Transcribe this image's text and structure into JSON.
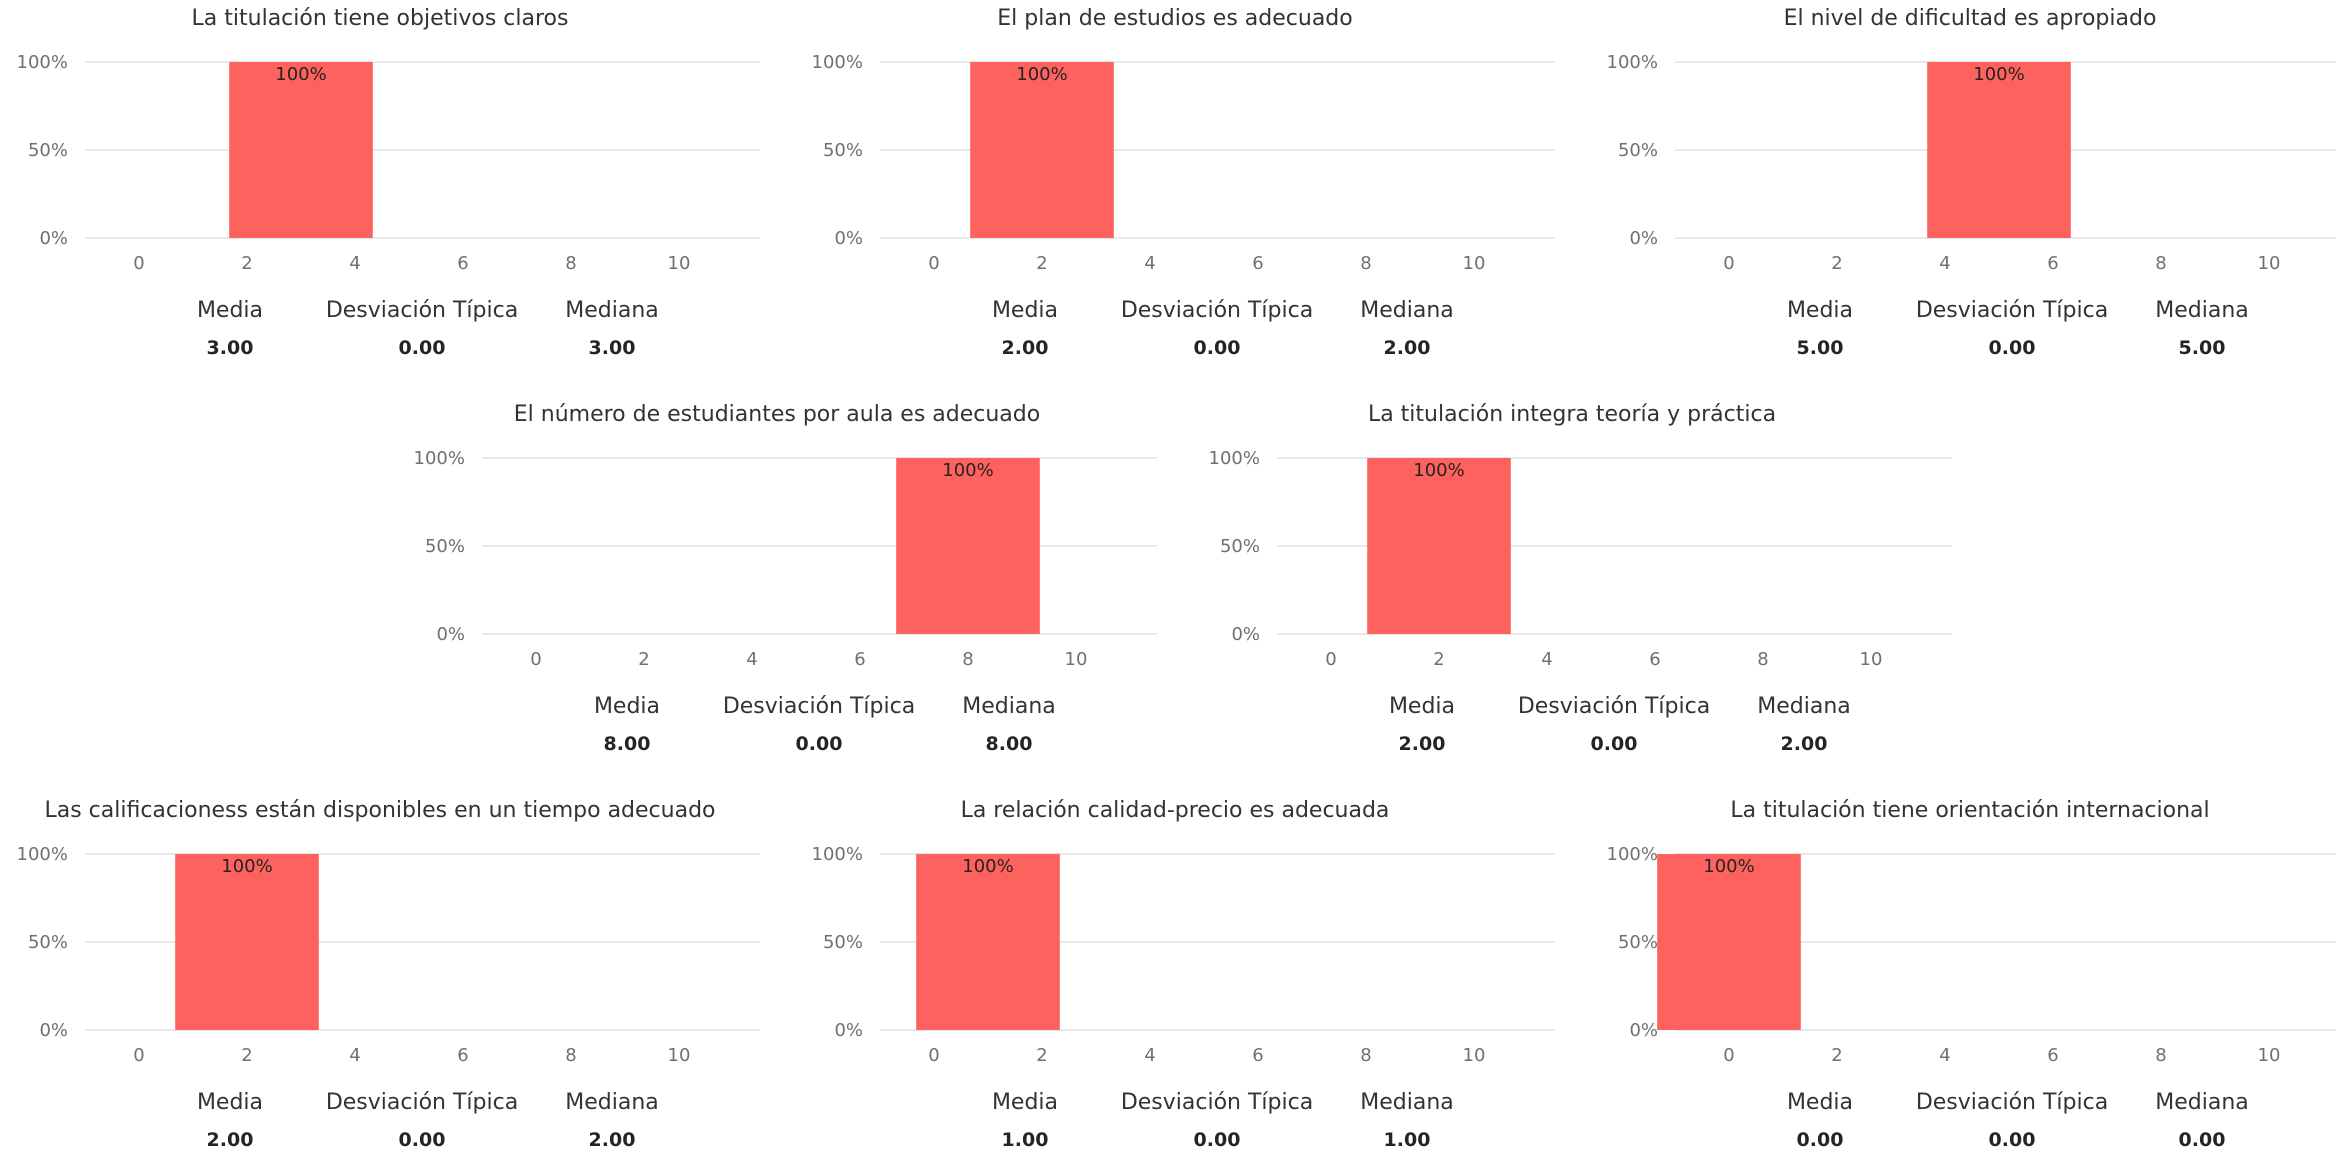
{
  "stat_labels": {
    "mean": "Media",
    "std": "Desviación Típica",
    "median": "Mediana"
  },
  "colors": {
    "bar": "#fd625e",
    "grid": "#e9e9e9"
  },
  "chart_data": [
    {
      "type": "bar",
      "title": "La titulación tiene objetivos claros",
      "x_ticks": [
        "0",
        "2",
        "4",
        "6",
        "8",
        "10"
      ],
      "xlim": [
        -1,
        11.5
      ],
      "y_ticks": [
        "100%",
        "50%",
        "0%"
      ],
      "ylim": [
        0,
        100
      ],
      "bars": [
        {
          "x": 3,
          "value": 100,
          "label": "100%"
        }
      ],
      "stats": {
        "mean": "3.00",
        "std": "0.00",
        "median": "3.00"
      }
    },
    {
      "type": "bar",
      "title": "El plan de estudios es adecuado",
      "x_ticks": [
        "0",
        "2",
        "4",
        "6",
        "8",
        "10"
      ],
      "xlim": [
        -1,
        11.5
      ],
      "y_ticks": [
        "100%",
        "50%",
        "0%"
      ],
      "ylim": [
        0,
        100
      ],
      "bars": [
        {
          "x": 2,
          "value": 100,
          "label": "100%"
        }
      ],
      "stats": {
        "mean": "2.00",
        "std": "0.00",
        "median": "2.00"
      }
    },
    {
      "type": "bar",
      "title": "El nivel de dificultad es apropiado",
      "x_ticks": [
        "0",
        "2",
        "4",
        "6",
        "8",
        "10"
      ],
      "xlim": [
        -1,
        11.5
      ],
      "y_ticks": [
        "100%",
        "50%",
        "0%"
      ],
      "ylim": [
        0,
        100
      ],
      "bars": [
        {
          "x": 5,
          "value": 100,
          "label": "100%"
        }
      ],
      "stats": {
        "mean": "5.00",
        "std": "0.00",
        "median": "5.00"
      }
    },
    {
      "type": "bar",
      "title": "El número de estudiantes por aula es adecuado",
      "x_ticks": [
        "0",
        "2",
        "4",
        "6",
        "8",
        "10"
      ],
      "xlim": [
        -1,
        11.5
      ],
      "y_ticks": [
        "100%",
        "50%",
        "0%"
      ],
      "ylim": [
        0,
        100
      ],
      "bars": [
        {
          "x": 8,
          "value": 100,
          "label": "100%"
        }
      ],
      "stats": {
        "mean": "8.00",
        "std": "0.00",
        "median": "8.00"
      }
    },
    {
      "type": "bar",
      "title": "La titulación integra teoría y práctica",
      "x_ticks": [
        "0",
        "2",
        "4",
        "6",
        "8",
        "10"
      ],
      "xlim": [
        -1,
        11.5
      ],
      "y_ticks": [
        "100%",
        "50%",
        "0%"
      ],
      "ylim": [
        0,
        100
      ],
      "bars": [
        {
          "x": 2,
          "value": 100,
          "label": "100%"
        }
      ],
      "stats": {
        "mean": "2.00",
        "std": "0.00",
        "median": "2.00"
      }
    },
    {
      "type": "bar",
      "title": "Las calificacioness están disponibles en un tiempo adecuado",
      "x_ticks": [
        "0",
        "2",
        "4",
        "6",
        "8",
        "10"
      ],
      "xlim": [
        -1,
        11.5
      ],
      "y_ticks": [
        "100%",
        "50%",
        "0%"
      ],
      "ylim": [
        0,
        100
      ],
      "bars": [
        {
          "x": 2,
          "value": 100,
          "label": "100%"
        }
      ],
      "stats": {
        "mean": "2.00",
        "std": "0.00",
        "median": "2.00"
      }
    },
    {
      "type": "bar",
      "title": "La relación calidad-precio es adecuada",
      "x_ticks": [
        "0",
        "2",
        "4",
        "6",
        "8",
        "10"
      ],
      "xlim": [
        -1,
        11.5
      ],
      "y_ticks": [
        "100%",
        "50%",
        "0%"
      ],
      "ylim": [
        0,
        100
      ],
      "bars": [
        {
          "x": 1,
          "value": 100,
          "label": "100%"
        }
      ],
      "stats": {
        "mean": "1.00",
        "std": "0.00",
        "median": "1.00"
      }
    },
    {
      "type": "bar",
      "title": "La titulación tiene orientación internacional",
      "x_ticks": [
        "0",
        "2",
        "4",
        "6",
        "8",
        "10"
      ],
      "xlim": [
        -1,
        11.5
      ],
      "y_ticks": [
        "100%",
        "50%",
        "0%"
      ],
      "ylim": [
        0,
        100
      ],
      "bars": [
        {
          "x": 0,
          "value": 100,
          "label": "100%"
        }
      ],
      "stats": {
        "mean": "0.00",
        "std": "0.00",
        "median": "0.00"
      }
    }
  ]
}
